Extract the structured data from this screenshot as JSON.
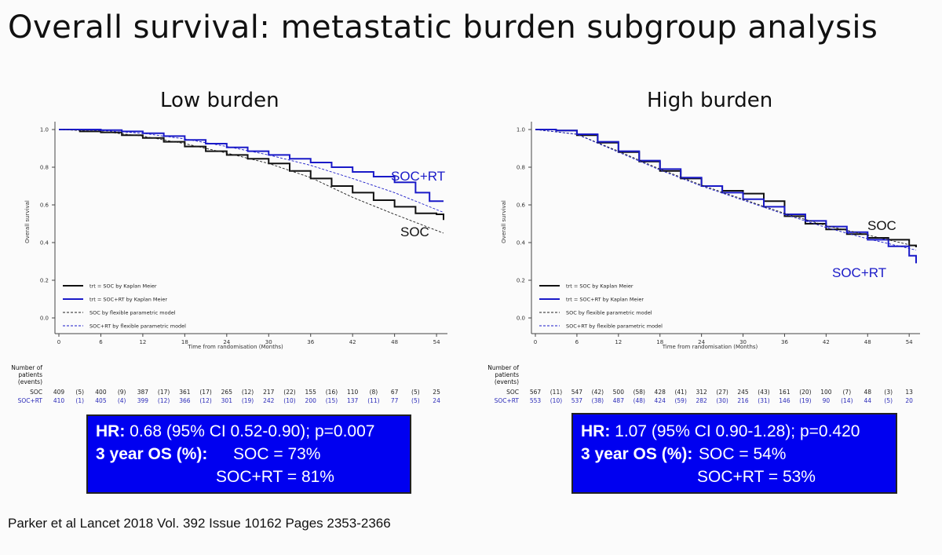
{
  "slide": {
    "title": "Overall survival: metastatic burden subgroup analysis",
    "citation": "Parker et al Lancet 2018 Vol. 392 Issue 10162 Pages 2353-2366"
  },
  "colors": {
    "soc": "#111111",
    "soc_rt": "#1a1ac8",
    "box": "#0000f0"
  },
  "chart_data": [
    {
      "type": "line",
      "title": "Low burden",
      "xlabel": "Time from randomisation (Months)",
      "ylabel": "Overall survival",
      "xticks": [
        0,
        6,
        12,
        18,
        24,
        30,
        36,
        42,
        48,
        54
      ],
      "yticks": [
        "0.0",
        "0.2",
        "0.4",
        "0.6",
        "0.8",
        "1.0"
      ],
      "xlim": [
        0,
        55
      ],
      "ylim": [
        0,
        1
      ],
      "legend": [
        "trt = SOC by Kaplan Meier",
        "trt = SOC+RT by Kaplan Meier",
        "SOC by flexible parametric model",
        "SOC+RT by flexible parametric model"
      ],
      "labels": {
        "soc_rt": "SOC+RT",
        "soc": "SOC"
      },
      "series": [
        {
          "name": "trt = SOC by Kaplan Meier",
          "style": "km",
          "color": "#111111",
          "x": [
            0,
            3,
            6,
            9,
            12,
            15,
            18,
            21,
            24,
            27,
            30,
            33,
            36,
            39,
            42,
            45,
            48,
            51,
            54,
            55
          ],
          "y": [
            1.0,
            0.99,
            0.985,
            0.97,
            0.955,
            0.935,
            0.91,
            0.885,
            0.865,
            0.845,
            0.82,
            0.78,
            0.74,
            0.7,
            0.665,
            0.625,
            0.59,
            0.555,
            0.55,
            0.52
          ]
        },
        {
          "name": "trt = SOC+RT by Kaplan Meier",
          "style": "km",
          "color": "#1a1ac8",
          "x": [
            0,
            3,
            6,
            9,
            12,
            15,
            18,
            21,
            24,
            27,
            30,
            33,
            36,
            39,
            42,
            45,
            48,
            51,
            53,
            55
          ],
          "y": [
            1.0,
            1.0,
            0.997,
            0.99,
            0.98,
            0.965,
            0.945,
            0.925,
            0.905,
            0.885,
            0.865,
            0.845,
            0.825,
            0.8,
            0.775,
            0.75,
            0.72,
            0.665,
            0.62,
            0.62
          ]
        },
        {
          "name": "SOC by flexible parametric model",
          "style": "dash",
          "color": "#222222",
          "x": [
            0,
            6,
            12,
            18,
            24,
            30,
            36,
            42,
            48,
            55
          ],
          "y": [
            1.0,
            0.99,
            0.965,
            0.925,
            0.875,
            0.82,
            0.745,
            0.64,
            0.55,
            0.45
          ]
        },
        {
          "name": "SOC+RT by flexible parametric model",
          "style": "dash",
          "color": "#1a1ac8",
          "x": [
            0,
            6,
            12,
            18,
            24,
            30,
            36,
            42,
            48,
            55
          ],
          "y": [
            1.0,
            0.995,
            0.98,
            0.95,
            0.91,
            0.865,
            0.81,
            0.74,
            0.665,
            0.56
          ]
        }
      ],
      "risk_table": {
        "header": "Number of patients (events)",
        "rows": [
          {
            "label": "SOC",
            "values": [
              "409",
              "(5)",
              "400",
              "(9)",
              "387",
              "(17)",
              "361",
              "(17)",
              "265",
              "(12)",
              "217",
              "(22)",
              "155",
              "(16)",
              "110",
              "(8)",
              "67",
              "(5)",
              "25"
            ]
          },
          {
            "label": "SOC+RT",
            "values": [
              "410",
              "(1)",
              "405",
              "(4)",
              "399",
              "(12)",
              "366",
              "(12)",
              "301",
              "(19)",
              "242",
              "(10)",
              "200",
              "(15)",
              "137",
              "(11)",
              "77",
              "(5)",
              "24"
            ]
          }
        ]
      },
      "summary": {
        "hr_label": "HR:",
        "hr_text": " 0.68 (95% CI 0.52-0.90); p=0.007",
        "os_label": "3 year OS (%):",
        "os_soc": "SOC = 73%",
        "os_rt": "SOC+RT = 81%"
      }
    },
    {
      "type": "line",
      "title": "High burden",
      "xlabel": "Time from randomisation (Months)",
      "ylabel": "Overall survival",
      "xticks": [
        0,
        6,
        12,
        18,
        24,
        30,
        36,
        42,
        48,
        54
      ],
      "yticks": [
        "0.0",
        "0.2",
        "0.4",
        "0.6",
        "0.8",
        "1.0"
      ],
      "xlim": [
        0,
        55
      ],
      "ylim": [
        0,
        1
      ],
      "legend": [
        "trt = SOC by Kaplan Meier",
        "trt = SOC+RT by Kaplan Meier",
        "SOC by flexible parametric model",
        "SOC+RT by flexible parametric model"
      ],
      "labels": {
        "soc_rt": "SOC+RT",
        "soc": "SOC"
      },
      "series": [
        {
          "name": "trt = SOC by Kaplan Meier",
          "style": "km",
          "color": "#111111",
          "x": [
            0,
            3,
            6,
            9,
            12,
            15,
            18,
            21,
            24,
            27,
            30,
            33,
            36,
            39,
            42,
            45,
            48,
            51,
            54,
            55
          ],
          "y": [
            1.0,
            0.995,
            0.97,
            0.93,
            0.88,
            0.83,
            0.78,
            0.74,
            0.7,
            0.675,
            0.66,
            0.62,
            0.54,
            0.5,
            0.47,
            0.445,
            0.425,
            0.415,
            0.385,
            0.375
          ]
        },
        {
          "name": "trt = SOC+RT by Kaplan Meier",
          "style": "km",
          "color": "#1a1ac8",
          "x": [
            0,
            3,
            6,
            9,
            12,
            15,
            18,
            21,
            24,
            27,
            30,
            33,
            36,
            39,
            42,
            45,
            48,
            51,
            54,
            55
          ],
          "y": [
            1.0,
            0.995,
            0.975,
            0.935,
            0.885,
            0.835,
            0.79,
            0.745,
            0.7,
            0.665,
            0.63,
            0.59,
            0.55,
            0.515,
            0.485,
            0.455,
            0.415,
            0.38,
            0.33,
            0.29
          ]
        },
        {
          "name": "SOC by flexible parametric model",
          "style": "dash",
          "color": "#222222",
          "x": [
            0,
            6,
            12,
            18,
            24,
            30,
            36,
            42,
            48,
            55
          ],
          "y": [
            1.0,
            0.975,
            0.885,
            0.79,
            0.705,
            0.63,
            0.555,
            0.49,
            0.44,
            0.38
          ]
        },
        {
          "name": "SOC+RT by flexible parametric model",
          "style": "dash",
          "color": "#1a1ac8",
          "x": [
            0,
            6,
            12,
            18,
            24,
            30,
            36,
            42,
            48,
            55
          ],
          "y": [
            1.0,
            0.975,
            0.88,
            0.785,
            0.7,
            0.625,
            0.55,
            0.48,
            0.42,
            0.36
          ]
        }
      ],
      "risk_table": {
        "header": "Number of patients (events)",
        "rows": [
          {
            "label": "SOC",
            "values": [
              "567",
              "(11)",
              "547",
              "(42)",
              "500",
              "(58)",
              "428",
              "(41)",
              "312",
              "(27)",
              "245",
              "(43)",
              "161",
              "(20)",
              "100",
              "(7)",
              "48",
              "(3)",
              "13"
            ]
          },
          {
            "label": "SOC+RT",
            "values": [
              "553",
              "(10)",
              "537",
              "(38)",
              "487",
              "(48)",
              "424",
              "(59)",
              "282",
              "(30)",
              "216",
              "(31)",
              "146",
              "(19)",
              "90",
              "(14)",
              "44",
              "(5)",
              "20"
            ]
          }
        ]
      },
      "summary": {
        "hr_label": "HR:",
        "hr_text": " 1.07 (95% CI 0.90-1.28); p=0.420",
        "os_label": "3 year OS (%):",
        "os_soc": "SOC = 54%",
        "os_rt": "SOC+RT = 53%"
      }
    }
  ]
}
